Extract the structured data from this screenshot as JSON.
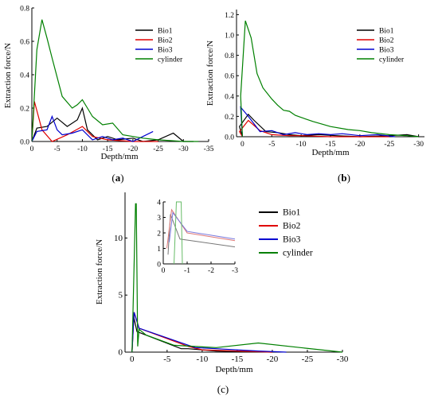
{
  "chart_data": [
    {
      "id": "a",
      "type": "line",
      "panel_label": "a",
      "xlabel": "Depth/mm",
      "ylabel": "Extraction force/N",
      "xlim": [
        0,
        -35
      ],
      "ylim": [
        0,
        0.8
      ],
      "xticks": [
        0,
        -5,
        -10,
        -15,
        -20,
        -25,
        -30,
        -35
      ],
      "yticks": [
        0.0,
        0.2,
        0.4,
        0.6,
        0.8
      ],
      "ytick_labels": [
        "0.0",
        "0.2",
        "0.4",
        "0.6",
        "0.8"
      ],
      "legend_position": "top-right",
      "series": [
        {
          "name": "Bio1",
          "color": "#000000",
          "x": [
            0,
            -1,
            -3,
            -5,
            -7,
            -9,
            -10,
            -11,
            -13,
            -15,
            -17,
            -20,
            -22,
            -25,
            -28,
            -30,
            -32
          ],
          "y": [
            0.0,
            0.08,
            0.09,
            0.14,
            0.09,
            0.13,
            0.2,
            0.07,
            0.01,
            0.03,
            0.01,
            0.02,
            0.0,
            0.01,
            0.05,
            0.0,
            0.0
          ]
        },
        {
          "name": "Bio2",
          "color": "#e00000",
          "x": [
            0,
            -0.5,
            -2,
            -4,
            -7,
            -10,
            -12,
            -15,
            -20,
            -25
          ],
          "y": [
            0.0,
            0.24,
            0.07,
            0.0,
            0.04,
            0.09,
            0.03,
            0.01,
            0.0,
            0.0
          ]
        },
        {
          "name": "Bio3",
          "color": "#0000d0",
          "x": [
            0,
            -1,
            -3,
            -4,
            -5,
            -6,
            -8,
            -10,
            -12,
            -14,
            -16,
            -18,
            -20,
            -22,
            -24
          ],
          "y": [
            0.0,
            0.06,
            0.07,
            0.15,
            0.07,
            0.04,
            0.05,
            0.07,
            0.01,
            0.03,
            0.01,
            0.02,
            0.0,
            0.03,
            0.06
          ]
        },
        {
          "name": "cylinder",
          "color": "#008000",
          "x": [
            0,
            -1,
            -2,
            -3,
            -4,
            -6,
            -8,
            -9,
            -10,
            -11,
            -12,
            -14,
            -16,
            -18,
            -20,
            -22,
            -25,
            -30,
            -33
          ],
          "y": [
            0.0,
            0.55,
            0.73,
            0.62,
            0.5,
            0.27,
            0.2,
            0.22,
            0.25,
            0.2,
            0.15,
            0.1,
            0.11,
            0.04,
            0.03,
            0.02,
            0.01,
            0.0,
            0.0
          ]
        }
      ]
    },
    {
      "id": "b",
      "type": "line",
      "panel_label": "b",
      "xlabel": "Depth/mm",
      "ylabel": "Extraction force/N",
      "xlim": [
        1,
        -31
      ],
      "ylim": [
        0,
        1.25
      ],
      "xticks": [
        0,
        -5,
        -10,
        -15,
        -20,
        -25,
        -30
      ],
      "yticks": [
        0.0,
        0.2,
        0.4,
        0.6,
        0.8,
        1.0,
        1.2
      ],
      "ytick_labels": [
        "0.0",
        "0.2",
        "0.4",
        "0.6",
        "0.8",
        "1.0",
        "1.2"
      ],
      "legend_position": "top-right",
      "series": [
        {
          "name": "Bio1",
          "color": "#000000",
          "x": [
            0,
            0.5,
            -1,
            -2,
            -4,
            -6,
            -8,
            -10,
            -13,
            -16,
            -20,
            -25,
            -28,
            -30
          ],
          "y": [
            0.0,
            0.1,
            0.22,
            0.16,
            0.05,
            0.04,
            0.02,
            0.01,
            0.02,
            0.01,
            0.0,
            0.01,
            0.02,
            0.0
          ]
        },
        {
          "name": "Bio2",
          "color": "#e00000",
          "x": [
            0,
            0.5,
            -1,
            -3,
            -5,
            -8,
            -10,
            -15,
            -20,
            -25
          ],
          "y": [
            0.0,
            0.05,
            0.16,
            0.06,
            0.02,
            0.01,
            0.01,
            0.0,
            0.0,
            0.0
          ]
        },
        {
          "name": "Bio3",
          "color": "#0000d0",
          "x": [
            0,
            0.3,
            -1,
            -3,
            -5,
            -7,
            -9,
            -11,
            -13,
            -15,
            -17,
            -20,
            -23,
            -26
          ],
          "y": [
            0.0,
            0.29,
            0.2,
            0.05,
            0.06,
            0.02,
            0.04,
            0.02,
            0.03,
            0.02,
            0.03,
            0.01,
            0.02,
            0.0
          ]
        },
        {
          "name": "cylinder",
          "color": "#008000",
          "x": [
            0,
            0.3,
            -0.5,
            -1.5,
            -2.5,
            -3.5,
            -5,
            -6,
            -7,
            -8,
            -9,
            -10,
            -12,
            -15,
            -18,
            -20,
            -22,
            -25,
            -28,
            -30
          ],
          "y": [
            0.0,
            0.4,
            1.14,
            0.97,
            0.62,
            0.48,
            0.37,
            0.31,
            0.26,
            0.25,
            0.21,
            0.19,
            0.15,
            0.1,
            0.07,
            0.06,
            0.04,
            0.02,
            0.01,
            0.0
          ]
        }
      ]
    },
    {
      "id": "c",
      "type": "line",
      "panel_label": "c",
      "xlabel": "Depth/mm",
      "ylabel": "Extraction force/N",
      "xlim": [
        1,
        -30
      ],
      "ylim": [
        0,
        14
      ],
      "xticks": [
        0,
        -5,
        -10,
        -15,
        -20,
        -25,
        -30
      ],
      "yticks": [
        0,
        5,
        10
      ],
      "ytick_labels": [
        "0",
        "5",
        "10"
      ],
      "legend_position": "top-right",
      "series": [
        {
          "name": "Bio1",
          "color": "#000000",
          "x": [
            0,
            -0.2,
            -0.7,
            -7,
            -8,
            -12,
            -20
          ],
          "y": [
            0,
            3.2,
            1.8,
            0.3,
            0.3,
            0.1,
            0.0
          ]
        },
        {
          "name": "Bio2",
          "color": "#e00000",
          "x": [
            0,
            -0.3,
            -1,
            -8,
            -10,
            -15,
            -20
          ],
          "y": [
            0,
            3.5,
            2.1,
            0.5,
            0.2,
            0.1,
            0.0
          ]
        },
        {
          "name": "Bio3",
          "color": "#0000d0",
          "x": [
            0,
            -0.3,
            -1,
            -9,
            -12,
            -18,
            -22
          ],
          "y": [
            0,
            3.5,
            2.1,
            0.4,
            0.3,
            0.1,
            0.0
          ]
        },
        {
          "name": "cylinder",
          "color": "#008000",
          "x": [
            0,
            -0.5,
            -0.6,
            -0.8,
            -1,
            -2,
            -6,
            -12,
            -18,
            -24,
            -30
          ],
          "y": [
            0,
            13,
            13,
            0.5,
            2.0,
            1.5,
            0.6,
            0.4,
            0.8,
            0.4,
            0.0
          ]
        }
      ]
    },
    {
      "id": "c-inset",
      "type": "line",
      "xlim": [
        0,
        -3
      ],
      "ylim": [
        0,
        4
      ],
      "xticks": [
        0,
        -1,
        -2,
        -3
      ],
      "yticks": [
        0,
        1,
        2,
        3,
        4
      ],
      "ytick_labels": [
        "0",
        "1",
        "2",
        "3",
        "4"
      ],
      "series": [
        {
          "name": "Bio1",
          "color": "#777777",
          "x": [
            -0.2,
            -0.3,
            -0.7,
            -3
          ],
          "y": [
            0.6,
            3.2,
            1.6,
            1.1
          ]
        },
        {
          "name": "Bio2",
          "color": "#dd7777",
          "x": [
            -0.15,
            -0.35,
            -1,
            -3
          ],
          "y": [
            1.0,
            3.5,
            2.0,
            1.5
          ]
        },
        {
          "name": "Bio3",
          "color": "#7777dd",
          "x": [
            -0.25,
            -0.4,
            -1,
            -3
          ],
          "y": [
            1.4,
            3.3,
            2.1,
            1.6
          ]
        },
        {
          "name": "cylinder",
          "color": "#66bb66",
          "x": [
            -0.45,
            -0.55,
            -0.75,
            -0.8
          ],
          "y": [
            0.0,
            4.0,
            4.0,
            0.0
          ]
        }
      ]
    }
  ]
}
